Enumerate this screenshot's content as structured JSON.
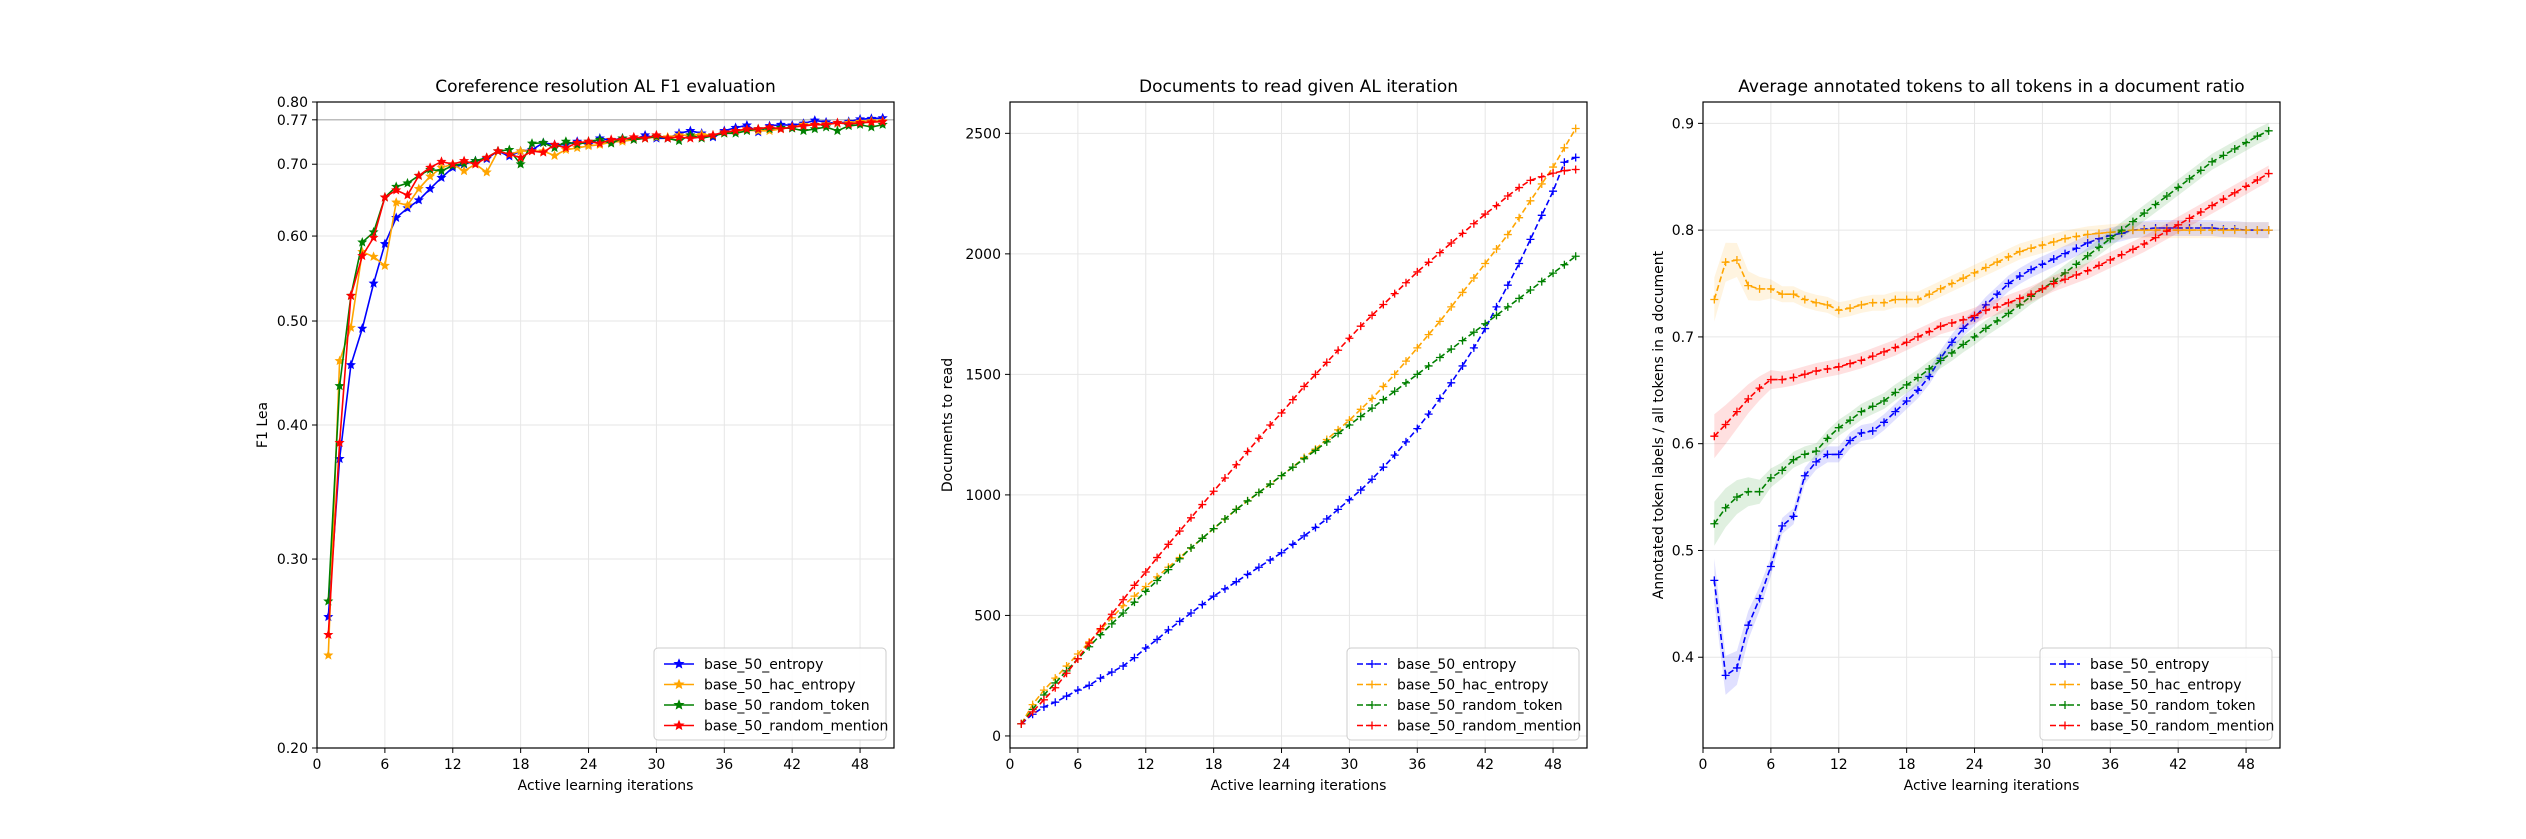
{
  "chart_data": [
    {
      "type": "line",
      "title": "Coreference resolution AL F1 evaluation",
      "xlabel": "Active learning iterations",
      "ylabel": "F1 Lea",
      "xlim": [
        0,
        51
      ],
      "ylim": [
        0.2,
        0.8
      ],
      "y_scale": "log",
      "xticks": [
        0,
        6,
        12,
        18,
        24,
        30,
        36,
        42,
        48
      ],
      "yticks": [
        0.2,
        0.3,
        0.4,
        0.5,
        0.6,
        0.7,
        0.77,
        0.8
      ],
      "ytick_labels": [
        "0.20",
        "0.30",
        "0.40",
        "0.50",
        "0.60",
        "0.70",
        "0.77",
        "0.80"
      ],
      "reference_line": 0.77,
      "grid": true,
      "legend_position": "lower right",
      "x": [
        1,
        2,
        3,
        4,
        5,
        6,
        7,
        8,
        9,
        10,
        11,
        12,
        13,
        14,
        15,
        16,
        17,
        18,
        19,
        20,
        21,
        22,
        23,
        24,
        25,
        26,
        27,
        28,
        29,
        30,
        31,
        32,
        33,
        34,
        35,
        36,
        37,
        38,
        39,
        40,
        41,
        42,
        43,
        44,
        45,
        46,
        47,
        48,
        49,
        50
      ],
      "series": [
        {
          "name": "base_50_entropy",
          "color": "#0000ff",
          "marker": "star",
          "linestyle": "solid",
          "values": [
            0.265,
            0.372,
            0.455,
            0.492,
            0.542,
            0.59,
            0.624,
            0.637,
            0.648,
            0.664,
            0.68,
            0.695,
            0.7,
            0.705,
            0.708,
            0.72,
            0.712,
            0.72,
            0.722,
            0.733,
            0.73,
            0.73,
            0.735,
            0.73,
            0.74,
            0.737,
            0.74,
            0.738,
            0.745,
            0.74,
            0.74,
            0.748,
            0.752,
            0.748,
            0.742,
            0.752,
            0.757,
            0.761,
            0.75,
            0.76,
            0.762,
            0.761,
            0.764,
            0.769,
            0.766,
            0.764,
            0.767,
            0.771,
            0.772,
            0.773
          ]
        },
        {
          "name": "base_50_hac_entropy",
          "color": "#ffa500",
          "marker": "star",
          "linestyle": "solid",
          "values": [
            0.244,
            0.459,
            0.493,
            0.58,
            0.574,
            0.563,
            0.645,
            0.641,
            0.664,
            0.682,
            0.695,
            0.7,
            0.69,
            0.7,
            0.688,
            0.72,
            0.715,
            0.72,
            0.72,
            0.72,
            0.713,
            0.722,
            0.725,
            0.728,
            0.73,
            0.734,
            0.735,
            0.738,
            0.74,
            0.742,
            0.742,
            0.745,
            0.745,
            0.746,
            0.745,
            0.748,
            0.752,
            0.753,
            0.752,
            0.752,
            0.755,
            0.758,
            0.762,
            0.762,
            0.763,
            0.764,
            0.765,
            0.767,
            0.768,
            0.768
          ]
        },
        {
          "name": "base_50_random_token",
          "color": "#008000",
          "marker": "star",
          "linestyle": "solid",
          "values": [
            0.274,
            0.435,
            0.528,
            0.592,
            0.605,
            0.652,
            0.667,
            0.672,
            0.683,
            0.692,
            0.69,
            0.698,
            0.701,
            0.705,
            0.71,
            0.72,
            0.722,
            0.7,
            0.732,
            0.733,
            0.725,
            0.735,
            0.73,
            0.735,
            0.738,
            0.732,
            0.74,
            0.738,
            0.74,
            0.743,
            0.74,
            0.736,
            0.745,
            0.74,
            0.744,
            0.748,
            0.748,
            0.752,
            0.755,
            0.755,
            0.757,
            0.756,
            0.752,
            0.755,
            0.758,
            0.752,
            0.76,
            0.762,
            0.758,
            0.762
          ]
        },
        {
          "name": "base_50_random_mention",
          "color": "#ff0000",
          "marker": "star",
          "linestyle": "solid",
          "values": [
            0.255,
            0.385,
            0.528,
            0.575,
            0.598,
            0.652,
            0.662,
            0.655,
            0.683,
            0.695,
            0.704,
            0.7,
            0.705,
            0.7,
            0.71,
            0.72,
            0.715,
            0.71,
            0.72,
            0.718,
            0.73,
            0.725,
            0.733,
            0.735,
            0.732,
            0.738,
            0.738,
            0.742,
            0.74,
            0.745,
            0.74,
            0.742,
            0.74,
            0.742,
            0.745,
            0.75,
            0.752,
            0.755,
            0.755,
            0.758,
            0.755,
            0.758,
            0.76,
            0.762,
            0.762,
            0.765,
            0.763,
            0.765,
            0.766,
            0.767
          ]
        }
      ]
    },
    {
      "type": "line",
      "title": "Documents to read given AL iteration",
      "xlabel": "Active learning iterations",
      "ylabel": "Documents to read",
      "xlim": [
        0,
        51
      ],
      "ylim": [
        -50,
        2630
      ],
      "xticks": [
        0,
        6,
        12,
        18,
        24,
        30,
        36,
        42,
        48
      ],
      "yticks": [
        0,
        500,
        1000,
        1500,
        2000,
        2500
      ],
      "grid": true,
      "legend_position": "lower right",
      "x": [
        1,
        2,
        3,
        4,
        5,
        6,
        7,
        8,
        9,
        10,
        11,
        12,
        13,
        14,
        15,
        16,
        17,
        18,
        19,
        20,
        21,
        22,
        23,
        24,
        25,
        26,
        27,
        28,
        29,
        30,
        31,
        32,
        33,
        34,
        35,
        36,
        37,
        38,
        39,
        40,
        41,
        42,
        43,
        44,
        45,
        46,
        47,
        48,
        49,
        50
      ],
      "series": [
        {
          "name": "base_50_entropy",
          "color": "#0000ff",
          "marker": "plus",
          "linestyle": "dashed",
          "values": [
            50,
            90,
            120,
            140,
            165,
            190,
            210,
            240,
            265,
            290,
            325,
            365,
            400,
            440,
            475,
            510,
            545,
            580,
            610,
            640,
            670,
            700,
            730,
            760,
            795,
            830,
            865,
            900,
            940,
            980,
            1020,
            1065,
            1115,
            1165,
            1220,
            1275,
            1335,
            1400,
            1465,
            1535,
            1610,
            1690,
            1780,
            1870,
            1960,
            2060,
            2160,
            2260,
            2380,
            2400
          ]
        },
        {
          "name": "base_50_hac_entropy",
          "color": "#ffa500",
          "marker": "plus",
          "linestyle": "dashed",
          "values": [
            50,
            130,
            190,
            240,
            290,
            340,
            390,
            440,
            490,
            540,
            580,
            620,
            660,
            700,
            740,
            780,
            820,
            860,
            900,
            940,
            975,
            1010,
            1045,
            1080,
            1115,
            1155,
            1190,
            1230,
            1270,
            1310,
            1355,
            1400,
            1450,
            1500,
            1555,
            1610,
            1665,
            1720,
            1780,
            1840,
            1900,
            1960,
            2020,
            2080,
            2150,
            2220,
            2290,
            2360,
            2440,
            2520
          ]
        },
        {
          "name": "base_50_random_token",
          "color": "#008000",
          "marker": "plus",
          "linestyle": "dashed",
          "values": [
            50,
            110,
            170,
            220,
            270,
            320,
            370,
            420,
            465,
            510,
            555,
            600,
            645,
            690,
            735,
            780,
            820,
            860,
            900,
            940,
            975,
            1010,
            1045,
            1080,
            1115,
            1150,
            1185,
            1220,
            1255,
            1290,
            1325,
            1360,
            1395,
            1430,
            1465,
            1500,
            1535,
            1570,
            1605,
            1640,
            1675,
            1710,
            1745,
            1780,
            1815,
            1850,
            1885,
            1920,
            1955,
            1990
          ]
        },
        {
          "name": "base_50_random_mention",
          "color": "#ff0000",
          "marker": "plus",
          "linestyle": "dashed",
          "values": [
            50,
            100,
            150,
            200,
            260,
            320,
            385,
            445,
            505,
            565,
            625,
            680,
            740,
            795,
            850,
            905,
            960,
            1015,
            1070,
            1125,
            1180,
            1235,
            1290,
            1340,
            1395,
            1450,
            1500,
            1550,
            1600,
            1650,
            1700,
            1745,
            1790,
            1835,
            1880,
            1925,
            1965,
            2005,
            2045,
            2085,
            2125,
            2165,
            2200,
            2240,
            2275,
            2305,
            2320,
            2335,
            2345,
            2350
          ]
        }
      ]
    },
    {
      "type": "line",
      "title": "Average annotated tokens to all tokens in a document ratio",
      "xlabel": "Active learning iterations",
      "ylabel": "Annotated token labels / all tokens in a document",
      "xlim": [
        0,
        51
      ],
      "ylim": [
        0.315,
        0.92
      ],
      "xticks": [
        0,
        6,
        12,
        18,
        24,
        30,
        36,
        42,
        48
      ],
      "yticks": [
        0.4,
        0.5,
        0.6,
        0.7,
        0.8,
        0.9
      ],
      "grid": true,
      "legend_position": "lower right",
      "x": [
        1,
        2,
        3,
        4,
        5,
        6,
        7,
        8,
        9,
        10,
        11,
        12,
        13,
        14,
        15,
        16,
        17,
        18,
        19,
        20,
        21,
        22,
        23,
        24,
        25,
        26,
        27,
        28,
        29,
        30,
        31,
        32,
        33,
        34,
        35,
        36,
        37,
        38,
        39,
        40,
        41,
        42,
        43,
        44,
        45,
        46,
        47,
        48,
        49,
        50
      ],
      "series": [
        {
          "name": "base_50_entropy",
          "color": "#0000ff",
          "marker": "plus",
          "linestyle": "dashed",
          "values": [
            0.472,
            0.383,
            0.39,
            0.43,
            0.455,
            0.485,
            0.523,
            0.532,
            0.57,
            0.583,
            0.59,
            0.59,
            0.603,
            0.61,
            0.612,
            0.62,
            0.63,
            0.64,
            0.65,
            0.663,
            0.68,
            0.695,
            0.708,
            0.718,
            0.73,
            0.74,
            0.75,
            0.757,
            0.763,
            0.768,
            0.773,
            0.778,
            0.783,
            0.788,
            0.792,
            0.795,
            0.797,
            0.8,
            0.801,
            0.802,
            0.802,
            0.802,
            0.802,
            0.802,
            0.802,
            0.801,
            0.801,
            0.8,
            0.8,
            0.8
          ]
        },
        {
          "name": "base_50_hac_entropy",
          "color": "#ffa500",
          "marker": "plus",
          "linestyle": "dashed",
          "values": [
            0.735,
            0.77,
            0.772,
            0.748,
            0.745,
            0.745,
            0.74,
            0.74,
            0.735,
            0.732,
            0.73,
            0.725,
            0.727,
            0.73,
            0.732,
            0.732,
            0.735,
            0.735,
            0.735,
            0.74,
            0.745,
            0.75,
            0.755,
            0.76,
            0.765,
            0.77,
            0.775,
            0.78,
            0.783,
            0.786,
            0.789,
            0.792,
            0.794,
            0.796,
            0.797,
            0.798,
            0.799,
            0.8,
            0.8,
            0.8,
            0.8,
            0.8,
            0.8,
            0.8,
            0.8,
            0.8,
            0.8,
            0.8,
            0.8,
            0.8
          ]
        },
        {
          "name": "base_50_random_token",
          "color": "#008000",
          "marker": "plus",
          "linestyle": "dashed",
          "values": [
            0.525,
            0.54,
            0.55,
            0.555,
            0.555,
            0.568,
            0.575,
            0.585,
            0.59,
            0.593,
            0.605,
            0.615,
            0.622,
            0.63,
            0.635,
            0.64,
            0.648,
            0.655,
            0.662,
            0.67,
            0.678,
            0.685,
            0.693,
            0.7,
            0.708,
            0.715,
            0.722,
            0.73,
            0.738,
            0.745,
            0.752,
            0.76,
            0.768,
            0.776,
            0.784,
            0.792,
            0.8,
            0.808,
            0.816,
            0.824,
            0.832,
            0.84,
            0.848,
            0.856,
            0.864,
            0.87,
            0.876,
            0.882,
            0.888,
            0.893
          ]
        },
        {
          "name": "base_50_random_mention",
          "color": "#ff0000",
          "marker": "plus",
          "linestyle": "dashed",
          "values": [
            0.607,
            0.618,
            0.63,
            0.642,
            0.652,
            0.66,
            0.66,
            0.662,
            0.665,
            0.668,
            0.67,
            0.672,
            0.675,
            0.678,
            0.682,
            0.686,
            0.69,
            0.695,
            0.7,
            0.705,
            0.71,
            0.713,
            0.716,
            0.72,
            0.725,
            0.728,
            0.732,
            0.736,
            0.74,
            0.745,
            0.75,
            0.754,
            0.758,
            0.762,
            0.767,
            0.772,
            0.777,
            0.782,
            0.787,
            0.793,
            0.799,
            0.805,
            0.811,
            0.817,
            0.823,
            0.829,
            0.835,
            0.841,
            0.847,
            0.853
          ]
        }
      ]
    }
  ]
}
